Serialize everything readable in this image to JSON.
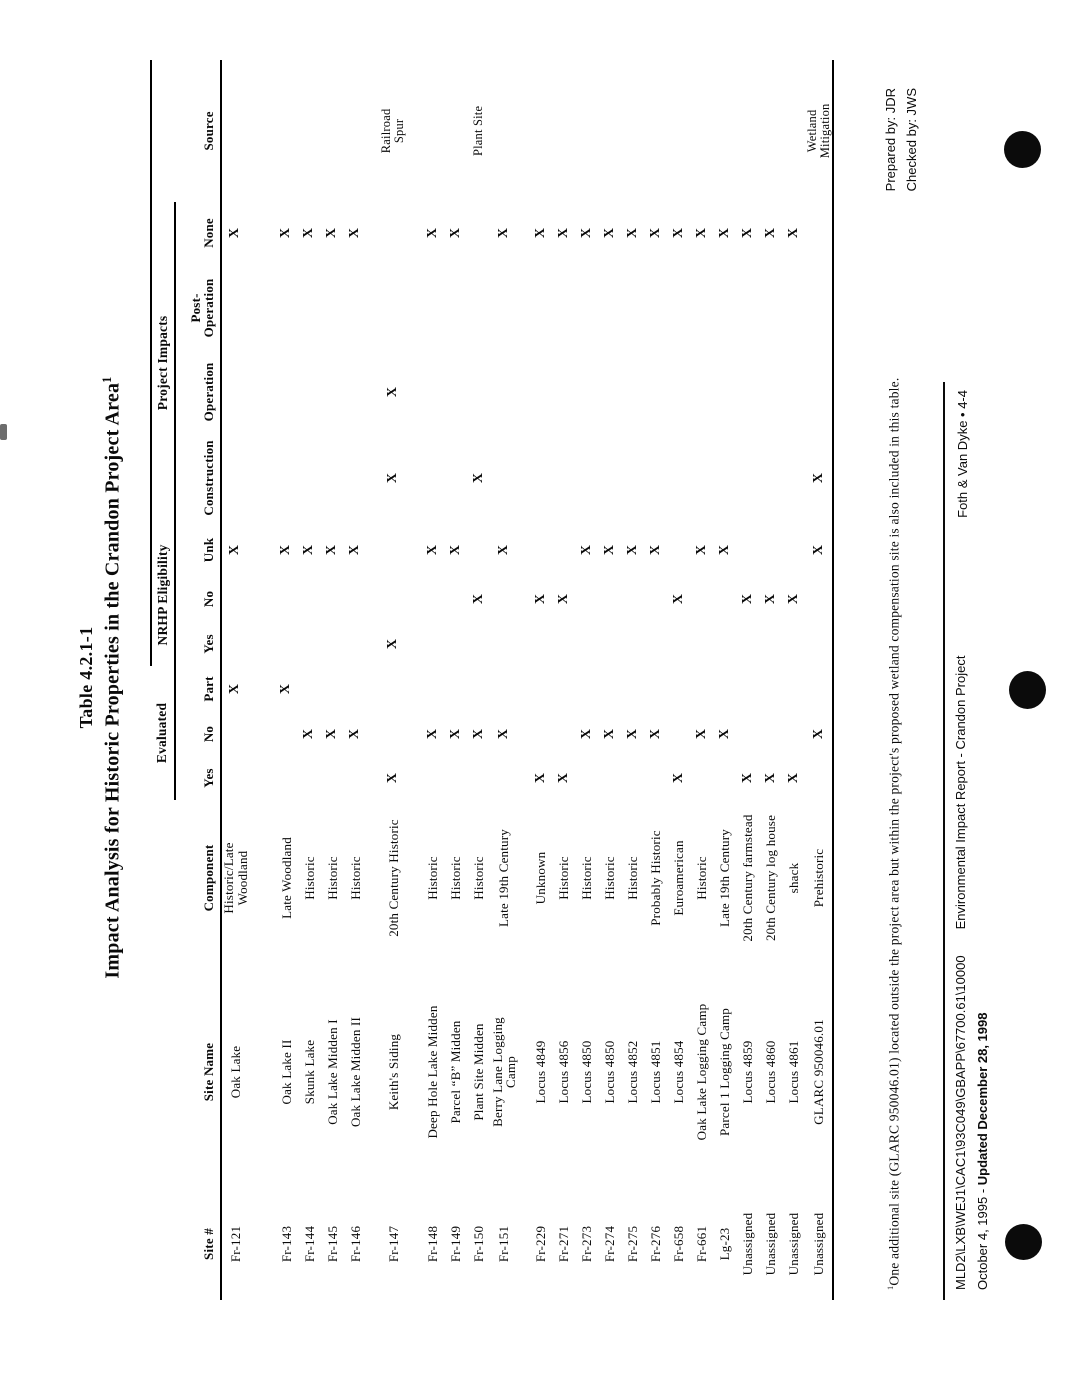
{
  "title": {
    "line1": "Table 4.2.1-1",
    "line2": "Impact Analysis for Historic Properties in the Crandon Project Area",
    "footnote_marker": "1"
  },
  "table": {
    "group_headers": [
      {
        "label": "Evaluated",
        "span": 3
      },
      {
        "label": "NRHP Eligibility",
        "span": 3
      },
      {
        "label": "Project Impacts",
        "span": 4
      }
    ],
    "columns": [
      "Site #",
      "Site Name",
      "Component",
      "Yes",
      "No",
      "Part",
      "Yes",
      "No",
      "Unk",
      "Construction",
      "Operation",
      "Post-\nOperation",
      "None",
      "Source"
    ],
    "eval_options": [
      "Yes",
      "No",
      "Part"
    ],
    "nrhp_options": [
      "Yes",
      "No",
      "Unk"
    ],
    "impact_options": [
      "Construction",
      "Operation",
      "Post-Operation",
      "None"
    ],
    "mark": "X",
    "rows": [
      {
        "site": "Fr-121",
        "name": "Oak Lake",
        "component": "Historic/Late\nWoodland",
        "eval": "Part",
        "nrhp": "Unk",
        "impacts": [
          "None"
        ],
        "source": ""
      },
      {
        "site": "Fr-143",
        "name": "Oak Lake II",
        "component": "Late Woodland",
        "eval": "Part",
        "nrhp": "Unk",
        "impacts": [
          "None"
        ],
        "source": "",
        "gap_before": 26
      },
      {
        "site": "Fr-144",
        "name": "Skunk Lake",
        "component": "Historic",
        "eval": "No",
        "nrhp": "Unk",
        "impacts": [
          "None"
        ],
        "source": ""
      },
      {
        "site": "Fr-145",
        "name": "Oak Lake Midden I",
        "component": "Historic",
        "eval": "No",
        "nrhp": "Unk",
        "impacts": [
          "None"
        ],
        "source": ""
      },
      {
        "site": "Fr-146",
        "name": "Oak Lake Midden II",
        "component": "Historic",
        "eval": "No",
        "nrhp": "Unk",
        "impacts": [
          "None"
        ],
        "source": ""
      },
      {
        "site": "Fr-147",
        "name": "Keith's Siding",
        "component": "20th Century Historic",
        "eval": "Yes",
        "nrhp": "Yes",
        "impacts": [
          "Construction",
          "Operation"
        ],
        "source": "Railroad\nSpur",
        "gap_before": 13
      },
      {
        "site": "Fr-148",
        "name": "Deep Hole Lake Midden",
        "component": "Historic",
        "eval": "No",
        "nrhp": "Unk",
        "impacts": [
          "None"
        ],
        "source": "",
        "gap_before": 15
      },
      {
        "site": "Fr-149",
        "name": "Parcel “B” Midden",
        "component": "Historic",
        "eval": "No",
        "nrhp": "Unk",
        "impacts": [
          "None"
        ],
        "source": ""
      },
      {
        "site": "Fr-150",
        "name": "Plant Site Midden",
        "component": "Historic",
        "eval": "No",
        "nrhp": "No",
        "impacts": [
          "Construction"
        ],
        "source": "Plant Site"
      },
      {
        "site": "Fr-151",
        "name": "Berry Lane Logging\nCamp",
        "component": "Late 19th Century",
        "eval": "No",
        "nrhp": "Unk",
        "impacts": [
          "None"
        ],
        "source": ""
      },
      {
        "site": "Fr-229",
        "name": "Locus 4849",
        "component": "Unknown",
        "eval": "Yes",
        "nrhp": "No",
        "impacts": [
          "None"
        ],
        "source": "",
        "gap_before": 12
      },
      {
        "site": "Fr-271",
        "name": "Locus 4856",
        "component": "Historic",
        "eval": "Yes",
        "nrhp": "No",
        "impacts": [
          "None"
        ],
        "source": ""
      },
      {
        "site": "Fr-273",
        "name": "Locus 4850",
        "component": "Historic",
        "eval": "No",
        "nrhp": "Unk",
        "impacts": [
          "None"
        ],
        "source": ""
      },
      {
        "site": "Fr-274",
        "name": "Locus 4850",
        "component": "Historic",
        "eval": "No",
        "nrhp": "Unk",
        "impacts": [
          "None"
        ],
        "source": ""
      },
      {
        "site": "Fr-275",
        "name": "Locus 4852",
        "component": "Historic",
        "eval": "No",
        "nrhp": "Unk",
        "impacts": [
          "None"
        ],
        "source": ""
      },
      {
        "site": "Fr-276",
        "name": "Locus 4851",
        "component": "Probably Historic",
        "eval": "No",
        "nrhp": "Unk",
        "impacts": [
          "None"
        ],
        "source": ""
      },
      {
        "site": "Fr-658",
        "name": "Locus 4854",
        "component": "Euroamerican",
        "eval": "Yes",
        "nrhp": "No",
        "impacts": [
          "None"
        ],
        "source": ""
      },
      {
        "site": "Fr-661",
        "name": "Oak Lake Logging Camp",
        "component": "Historic",
        "eval": "No",
        "nrhp": "Unk",
        "impacts": [
          "None"
        ],
        "source": ""
      },
      {
        "site": "Lg-23",
        "name": "Parcel 1 Logging Camp",
        "component": "Late 19th Century",
        "eval": "No",
        "nrhp": "Unk",
        "impacts": [
          "None"
        ],
        "source": ""
      },
      {
        "site": "Unassigned",
        "name": "Locus 4859",
        "component": "20th Century farmstead",
        "eval": "Yes",
        "nrhp": "No",
        "impacts": [
          "None"
        ],
        "source": ""
      },
      {
        "site": "Unassigned",
        "name": "Locus 4860",
        "component": "20th Century log house",
        "eval": "Yes",
        "nrhp": "No",
        "impacts": [
          "None"
        ],
        "source": ""
      },
      {
        "site": "Unassigned",
        "name": "Locus 4861",
        "component": "shack",
        "eval": "Yes",
        "nrhp": "No",
        "impacts": [
          "None"
        ],
        "source": ""
      },
      {
        "site": "Unassigned",
        "name": "GLARC 950046.01",
        "component": "Prehistoric",
        "eval": "No",
        "nrhp": "Unk",
        "impacts": [
          "Construction"
        ],
        "source": "Wetland\nMitigation"
      }
    ]
  },
  "footnote": {
    "marker": "1",
    "text": "One additional site (GLARC 950046.01) located outside the project area but within the project's proposed wetland compensation site is also included in this table."
  },
  "prepared": {
    "prepared_by": "Prepared by: JDR",
    "checked_by": "Checked by: JWS"
  },
  "footer": {
    "path": "MLD2\\LXB\\WEJ1\\CAC1\\93C049\\GBAPP\\67700.61\\10000",
    "report": "Environmental Impact Report - Crandon Project",
    "date_normal": "October 4, 1995 - ",
    "date_bold": "Updated December 28, 1998",
    "page_label": "Foth & Van Dyke • 4-4"
  }
}
